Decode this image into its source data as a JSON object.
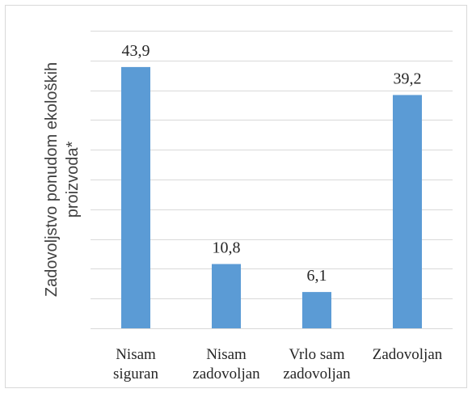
{
  "chart_data": {
    "type": "bar",
    "categories": [
      [
        "Nisam",
        "siguran"
      ],
      [
        "Nisam",
        "zadovoljan"
      ],
      [
        "Vrlo sam",
        "zadovoljan"
      ],
      [
        "Zadovoljan"
      ]
    ],
    "values": [
      43.9,
      10.8,
      6.1,
      39.2
    ],
    "value_labels": [
      "43,9",
      "10,8",
      "6,1",
      "39,2"
    ],
    "ylabel": [
      "Zadovoljstvo ponudom ekoloških",
      "proizvoda*"
    ],
    "ylim": [
      0,
      50
    ],
    "ytick_step": 5,
    "y_tick_labels_visible": false,
    "grid": true,
    "bar_color": "#5b9bd5",
    "grid_color": "#d9d9d9"
  }
}
